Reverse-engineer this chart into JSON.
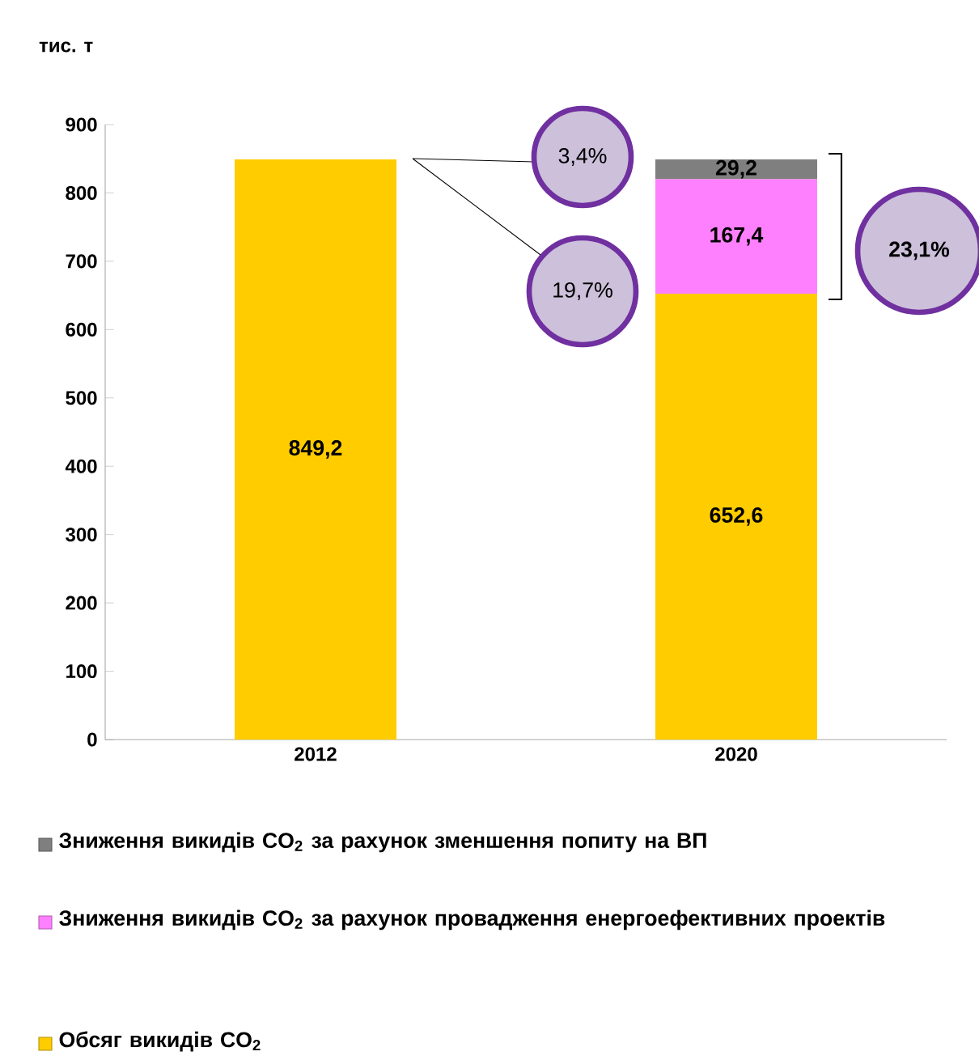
{
  "chart_data": {
    "type": "bar",
    "stacked": true,
    "ylabel": "тис. т",
    "categories": [
      "2012",
      "2020"
    ],
    "series": [
      {
        "name": "Обсяг викидів CO$_{2}$",
        "color": "#ffcc00",
        "values": [
          849.2,
          652.6
        ],
        "value_labels": [
          "849,2",
          "652,6"
        ]
      },
      {
        "name": "Зниження викидів CO$_{2}$  за рахунок провадження енергоефективних проектів",
        "color": "#ff80ff",
        "values": [
          null,
          167.4
        ],
        "value_labels": [
          null,
          "167,4"
        ]
      },
      {
        "name": "Зниження викидів CO$_{2}$  за рахунок зменшення попиту на ВП",
        "color": "#7f7f7f",
        "values": [
          null,
          29.2
        ],
        "value_labels": [
          null,
          "29,2"
        ]
      }
    ],
    "ylim": [
      0,
      900
    ],
    "yticks": [
      0,
      100,
      200,
      300,
      400,
      500,
      600,
      700,
      800,
      900
    ],
    "grid": false,
    "legend": "bottom",
    "annotations": [
      "3,4%",
      "19,7%",
      "23,1%"
    ]
  }
}
